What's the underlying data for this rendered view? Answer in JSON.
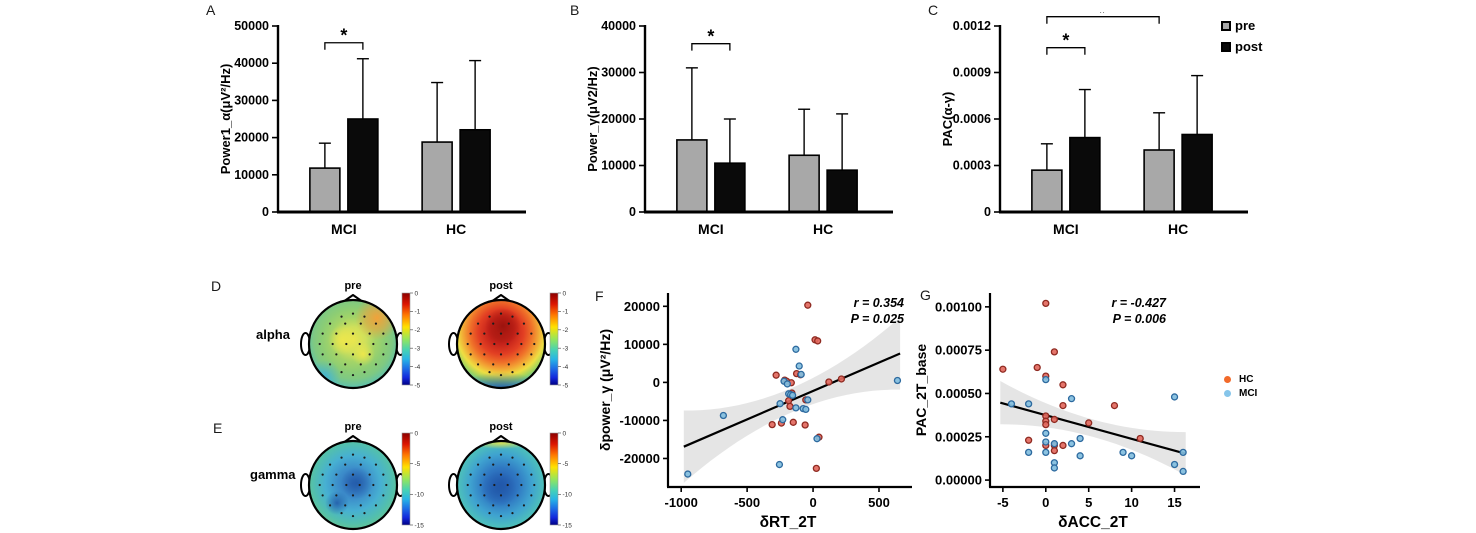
{
  "figure": {
    "background": "#ffffff",
    "panel_labels": {
      "A": "A",
      "B": "B",
      "C": "C",
      "D": "D",
      "E": "E",
      "F": "F",
      "G": "G"
    }
  },
  "bar_legend": {
    "pre_label": "pre",
    "post_label": "post",
    "pre_color": "#a8a8a8",
    "post_color": "#0a0a0a"
  },
  "scatter_legend": {
    "items": [
      {
        "label": "HC",
        "color": "#f26a2a"
      },
      {
        "label": "MCI",
        "color": "#86c5ea"
      }
    ]
  },
  "topo_rows": [
    {
      "panel": "D",
      "band_label": "alpha",
      "maps": [
        {
          "title": "pre"
        },
        {
          "title": "post"
        }
      ],
      "colorbar_ticks": [
        "0",
        "-1",
        "-2",
        "-3",
        "-4",
        "-5"
      ]
    },
    {
      "panel": "E",
      "band_label": "gamma",
      "maps": [
        {
          "title": "pre"
        },
        {
          "title": "post"
        }
      ],
      "colorbar_ticks": [
        "0",
        "-5",
        "-10",
        "-15"
      ]
    }
  ],
  "chart_data": [
    {
      "panel": "A",
      "type": "bar",
      "title": "",
      "ylabel": "Power1_α(μV²/Hz)",
      "categories": [
        "MCI",
        "HC"
      ],
      "series": [
        {
          "name": "pre",
          "values": [
            11800,
            18800
          ],
          "errors": [
            6700,
            16000
          ]
        },
        {
          "name": "post",
          "values": [
            25000,
            22100
          ],
          "errors": [
            16200,
            18600
          ]
        }
      ],
      "ylim": [
        0,
        50000
      ],
      "yticks": [
        0,
        10000,
        20000,
        30000,
        40000,
        50000
      ],
      "significance": [
        {
          "label": "*",
          "from": [
            "MCI",
            "pre"
          ],
          "to": [
            "MCI",
            "post"
          ],
          "y": 45500
        }
      ]
    },
    {
      "panel": "B",
      "type": "bar",
      "title": "",
      "ylabel": "Power_γ(μV2/Hz)",
      "categories": [
        "MCI",
        "HC"
      ],
      "series": [
        {
          "name": "pre",
          "values": [
            15500,
            12200
          ],
          "errors": [
            15500,
            9900
          ]
        },
        {
          "name": "post",
          "values": [
            10500,
            9000
          ],
          "errors": [
            9500,
            12100
          ]
        }
      ],
      "ylim": [
        0,
        40000
      ],
      "yticks": [
        0,
        10000,
        20000,
        30000,
        40000
      ],
      "significance": [
        {
          "label": "*",
          "from": [
            "MCI",
            "pre"
          ],
          "to": [
            "MCI",
            "post"
          ],
          "y": 36200
        }
      ]
    },
    {
      "panel": "C",
      "type": "bar",
      "title": "",
      "ylabel": "PAC(α-γ)",
      "categories": [
        "MCI",
        "HC"
      ],
      "series": [
        {
          "name": "pre",
          "values": [
            0.00027,
            0.0004
          ],
          "errors": [
            0.00017,
            0.00024
          ]
        },
        {
          "name": "post",
          "values": [
            0.00048,
            0.0005
          ],
          "errors": [
            0.00031,
            0.00038
          ]
        }
      ],
      "ylim": [
        0,
        0.0012
      ],
      "yticks": [
        0,
        0.0003,
        0.0006,
        0.0009,
        0.0012
      ],
      "ytick_labels": [
        "0",
        "0.0003",
        "0.0006",
        "0.0009",
        "0.0012"
      ],
      "significance": [
        {
          "label": "*",
          "from": [
            "MCI",
            "pre"
          ],
          "to": [
            "MCI",
            "post"
          ],
          "y": 0.00106
        },
        {
          "label": "#",
          "from": [
            "MCI",
            "pre"
          ],
          "to": [
            "HC",
            "pre"
          ],
          "y": 0.00126
        }
      ]
    },
    {
      "panel": "D",
      "type": "heatmap",
      "subtype": "eeg-topography",
      "band": "alpha",
      "conditions": [
        "pre",
        "post"
      ],
      "colorbar": {
        "max": 0,
        "min": -5,
        "ticks": [
          0,
          -1,
          -2,
          -3,
          -4,
          -5
        ]
      },
      "pattern": {
        "pre": "green-yellow over most of scalp, orange right-frontal edge, cyan-blue posterior rim",
        "post": "strong red frontal-central region, yellow-green ring, blue posterior rim"
      }
    },
    {
      "panel": "E",
      "type": "heatmap",
      "subtype": "eeg-topography",
      "band": "gamma",
      "conditions": [
        "pre",
        "post"
      ],
      "colorbar": {
        "max": 0,
        "min": -15,
        "ticks": [
          0,
          -5,
          -10,
          -15
        ]
      },
      "pattern": {
        "pre": "blue central region, cyan-green rim",
        "post": "blue central region, cyan-green rim with yellow frontal sliver"
      }
    },
    {
      "panel": "F",
      "type": "scatter",
      "xlabel": "δRT_2T",
      "ylabel": "δpower_γ (μV²/Hz)",
      "annotation": {
        "r": "r = 0.354",
        "p": "P = 0.025"
      },
      "xlim": [
        -1100,
        720
      ],
      "ylim": [
        -27500,
        23500
      ],
      "xticks": [
        -1000,
        -500,
        0,
        500
      ],
      "yticks": [
        -20000,
        -10000,
        0,
        10000,
        20000
      ],
      "regression": {
        "x1": -980,
        "y1": -16900,
        "x2": 660,
        "y2": 7600,
        "band_mid": 3200,
        "band_end": 9500
      },
      "point_colors": {
        "HC_fill": "#e2695e",
        "HC_stroke": "#8f2a21",
        "MCI_fill": "#82bede",
        "MCI_stroke": "#2d6a9f"
      },
      "points": {
        "HC": [
          [
            -40,
            20300
          ],
          [
            15,
            11200
          ],
          [
            35,
            10900
          ],
          [
            -280,
            1900
          ],
          [
            -125,
            2300
          ],
          [
            -95,
            2000
          ],
          [
            -215,
            600
          ],
          [
            -200,
            300
          ],
          [
            -160,
            -2800
          ],
          [
            -185,
            -4800
          ],
          [
            -175,
            -6300
          ],
          [
            -310,
            -11100
          ],
          [
            -240,
            -10700
          ],
          [
            -150,
            -10500
          ],
          [
            -60,
            -11200
          ],
          [
            45,
            -14400
          ],
          [
            25,
            -22600
          ],
          [
            120,
            100
          ],
          [
            215,
            900
          ],
          [
            -55,
            -4600
          ],
          [
            -165,
            -100
          ]
        ],
        "MCI": [
          [
            -950,
            -24100
          ],
          [
            -680,
            -8700
          ],
          [
            -250,
            -5600
          ],
          [
            -230,
            -9800
          ],
          [
            -255,
            -21600
          ],
          [
            -130,
            8700
          ],
          [
            -105,
            4300
          ],
          [
            -90,
            2100
          ],
          [
            -220,
            300
          ],
          [
            -195,
            -400
          ],
          [
            -185,
            -3000
          ],
          [
            -170,
            -3200
          ],
          [
            -155,
            -3400
          ],
          [
            -130,
            -6700
          ],
          [
            -75,
            -6900
          ],
          [
            -55,
            -7100
          ],
          [
            -40,
            -4600
          ],
          [
            30,
            -14800
          ],
          [
            640,
            500
          ]
        ]
      }
    },
    {
      "panel": "G",
      "type": "scatter",
      "xlabel": "δACC_2T",
      "ylabel": "PAC_2T_base",
      "annotation": {
        "r": "r = -0.427",
        "p": "P = 0.006"
      },
      "xlim": [
        -6.5,
        17.5
      ],
      "ylim": [
        -4e-05,
        0.00108
      ],
      "xticks": [
        -5,
        0,
        5,
        10,
        15
      ],
      "yticks": [
        0,
        0.00025,
        0.0005,
        0.00075,
        0.001
      ],
      "ytick_labels": [
        "0.00000",
        "0.00025",
        "0.00050",
        "0.00075",
        "0.00100"
      ],
      "regression": {
        "x1": -5.3,
        "y1": 0.000447,
        "x2": 16.3,
        "y2": 0.000152,
        "band_mid": 5e-05,
        "band_end": 0.000125
      },
      "point_colors": {
        "HC_fill": "#e2695e",
        "HC_stroke": "#8f2a21",
        "MCI_fill": "#82bede",
        "MCI_stroke": "#2d6a9f"
      },
      "points": {
        "HC": [
          [
            0,
            0.00102
          ],
          [
            1,
            0.00074
          ],
          [
            -1,
            0.00065
          ],
          [
            -5,
            0.00064
          ],
          [
            0,
            0.0006
          ],
          [
            2,
            0.00055
          ],
          [
            2,
            0.00043
          ],
          [
            8,
            0.00043
          ],
          [
            0,
            0.00037
          ],
          [
            1,
            0.00035
          ],
          [
            0,
            0.00034
          ],
          [
            0,
            0.00032
          ],
          [
            5,
            0.00033
          ],
          [
            -2,
            0.00023
          ],
          [
            11,
            0.00024
          ],
          [
            0,
            0.0002
          ],
          [
            1,
            0.0002
          ],
          [
            2,
            0.0002
          ],
          [
            1,
            0.00017
          ]
        ],
        "MCI": [
          [
            -4,
            0.00044
          ],
          [
            -2,
            0.00044
          ],
          [
            0,
            0.00058
          ],
          [
            3,
            0.00047
          ],
          [
            15,
            0.00048
          ],
          [
            0,
            0.00027
          ],
          [
            0,
            0.00022
          ],
          [
            1,
            0.00021
          ],
          [
            3,
            0.00021
          ],
          [
            4,
            0.00024
          ],
          [
            4,
            0.00014
          ],
          [
            -2,
            0.00016
          ],
          [
            0,
            0.00016
          ],
          [
            9,
            0.00016
          ],
          [
            10,
            0.00014
          ],
          [
            16,
            0.00016
          ],
          [
            15,
            9e-05
          ],
          [
            16,
            5e-05
          ],
          [
            1,
            0.0001
          ],
          [
            1,
            7e-05
          ]
        ]
      }
    }
  ]
}
